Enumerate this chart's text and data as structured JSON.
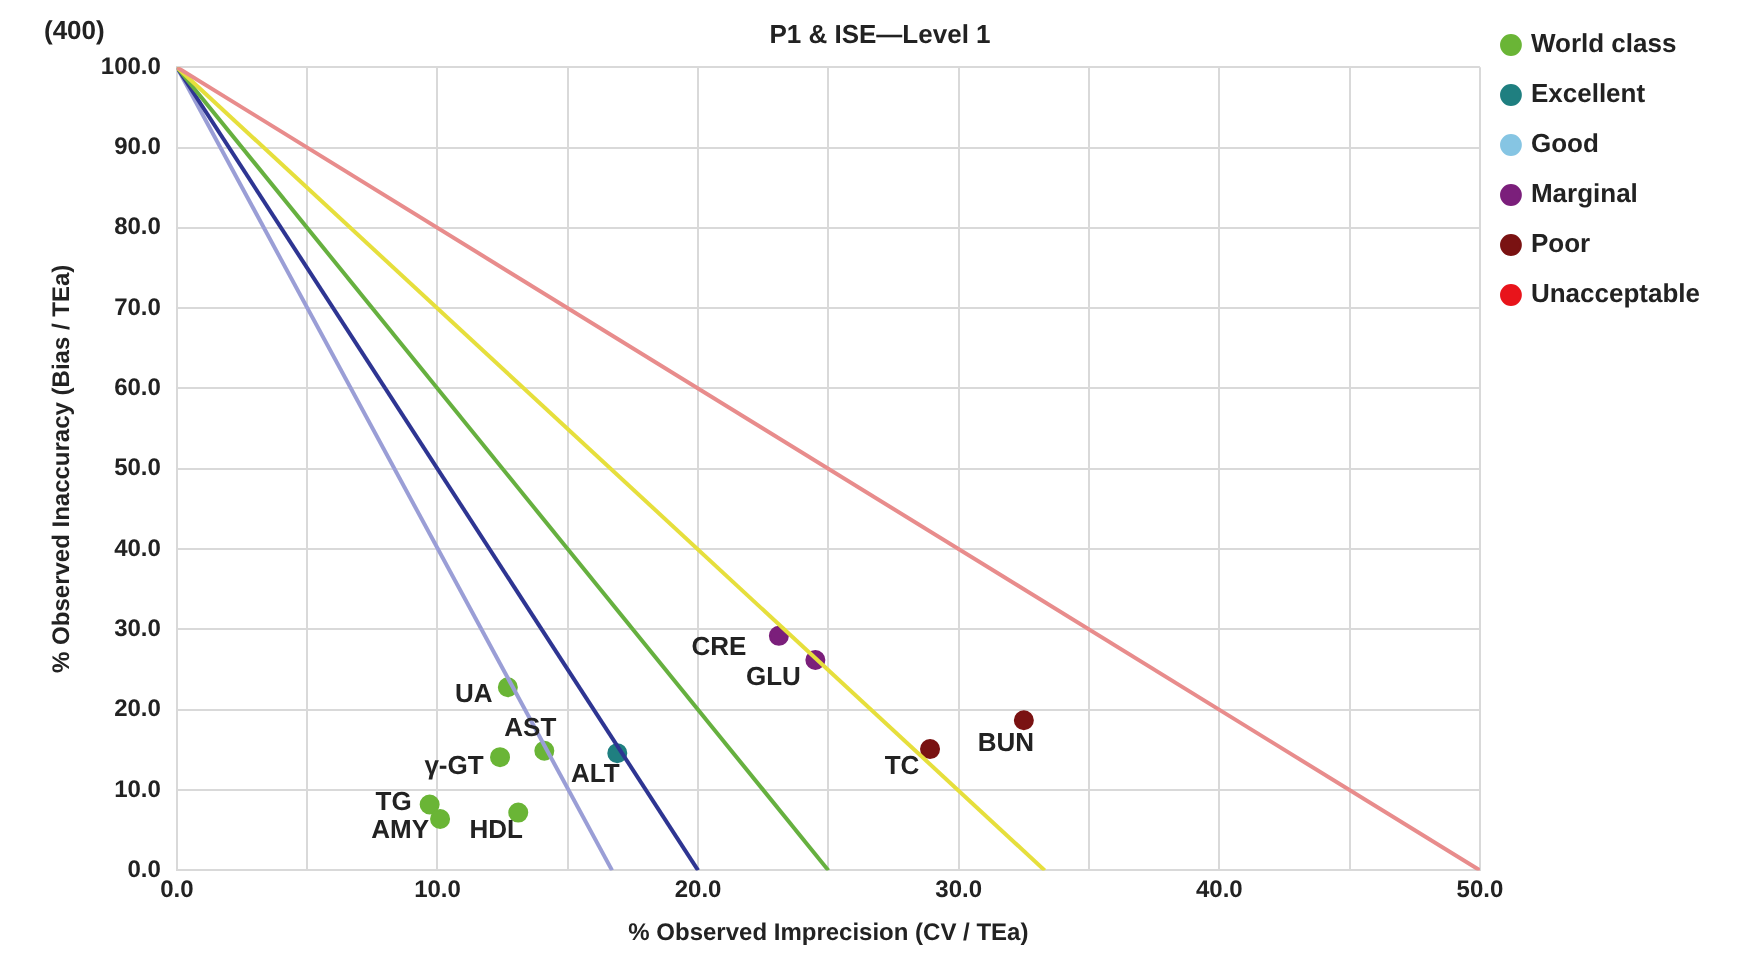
{
  "chart_data": {
    "type": "scatter",
    "title": "P1 & ISE—Level 1",
    "xlabel": "% Observed Imprecision (CV / TEa)",
    "ylabel": "% Observed Inaccuracy (Bias / TEa)",
    "xlim": [
      0,
      50
    ],
    "ylim": [
      0,
      100
    ],
    "xticks": [
      {
        "value": 0,
        "label": "0.0"
      },
      {
        "value": 5,
        "label": null
      },
      {
        "value": 10,
        "label": "10.0"
      },
      {
        "value": 15,
        "label": null
      },
      {
        "value": 20,
        "label": "20.0"
      },
      {
        "value": 25,
        "label": null
      },
      {
        "value": 30,
        "label": "30.0"
      },
      {
        "value": 35,
        "label": null
      },
      {
        "value": 40,
        "label": "40.0"
      },
      {
        "value": 45,
        "label": null
      },
      {
        "value": 50,
        "label": "50.0"
      }
    ],
    "yticks": [
      {
        "value": 0,
        "label": "0.0"
      },
      {
        "value": 10,
        "label": "10.0"
      },
      {
        "value": 20,
        "label": "20.0"
      },
      {
        "value": 30,
        "label": "30.0"
      },
      {
        "value": 40,
        "label": "40.0"
      },
      {
        "value": 50,
        "label": "50.0"
      },
      {
        "value": 60,
        "label": "60.0"
      },
      {
        "value": 70,
        "label": "70.0"
      },
      {
        "value": 80,
        "label": "80.0"
      },
      {
        "value": 90,
        "label": "90.0"
      },
      {
        "value": 100,
        "label": "100.0"
      }
    ],
    "grid": true,
    "legend": "right",
    "marker": "circle",
    "series": [
      {
        "type": "line",
        "marker": "none",
        "color": "#e88c8c",
        "x": [
          0,
          50
        ],
        "values": [
          100,
          0
        ]
      },
      {
        "type": "line",
        "marker": "none",
        "color": "#e6df3c",
        "x": [
          0,
          33.3
        ],
        "values": [
          100,
          0
        ]
      },
      {
        "type": "line",
        "marker": "none",
        "color": "#66b03f",
        "x": [
          0,
          25
        ],
        "values": [
          100,
          0
        ]
      },
      {
        "type": "line",
        "marker": "none",
        "color": "#2e3592",
        "x": [
          0,
          20
        ],
        "values": [
          100,
          0
        ]
      },
      {
        "type": "line",
        "marker": "none",
        "color": "#9a9ed6",
        "x": [
          0,
          16.7
        ],
        "values": [
          100,
          0
        ]
      },
      {
        "name": "World class",
        "color": "#6ab536",
        "x": [
          12.7,
          14.1,
          12.4,
          9.7,
          10.1,
          13.1
        ],
        "values": [
          22.8,
          14.9,
          14.1,
          8.2,
          6.4,
          7.2
        ]
      },
      {
        "name": "Excellent",
        "color": "#1f7f80",
        "x": [
          16.9
        ],
        "values": [
          14.6
        ]
      },
      {
        "name": "Good",
        "color": "#86c5e3"
      },
      {
        "name": "Marginal",
        "color": "#7b1f7b",
        "x": [
          23.1,
          24.5
        ],
        "values": [
          29.2,
          26.2
        ]
      },
      {
        "name": "Poor",
        "color": "#7a1212",
        "x": [
          28.9,
          32.5
        ],
        "values": [
          15.1,
          18.7
        ]
      },
      {
        "name": "Unacceptable",
        "color": "#e8141b"
      }
    ],
    "annotations": [
      "(400)",
      {
        "text": "UA",
        "x": 12.7,
        "y": 22.8
      },
      {
        "text": "AST",
        "x": 14.1,
        "y": 14.9
      },
      {
        "text": "γ-GT",
        "x": 12.4,
        "y": 14.1
      },
      {
        "text": "ALT",
        "x": 16.9,
        "y": 14.6
      },
      {
        "text": "TG",
        "x": 9.7,
        "y": 8.2
      },
      {
        "text": "AMY",
        "x": 10.1,
        "y": 6.4
      },
      {
        "text": "HDL",
        "x": 13.1,
        "y": 7.2
      },
      {
        "text": "CRE",
        "x": 23.1,
        "y": 29.2
      },
      {
        "text": "GLU",
        "x": 24.5,
        "y": 26.2
      },
      {
        "text": "TC",
        "x": 28.9,
        "y": 15.1
      },
      {
        "text": "BUN",
        "x": 32.5,
        "y": 18.7
      }
    ]
  }
}
